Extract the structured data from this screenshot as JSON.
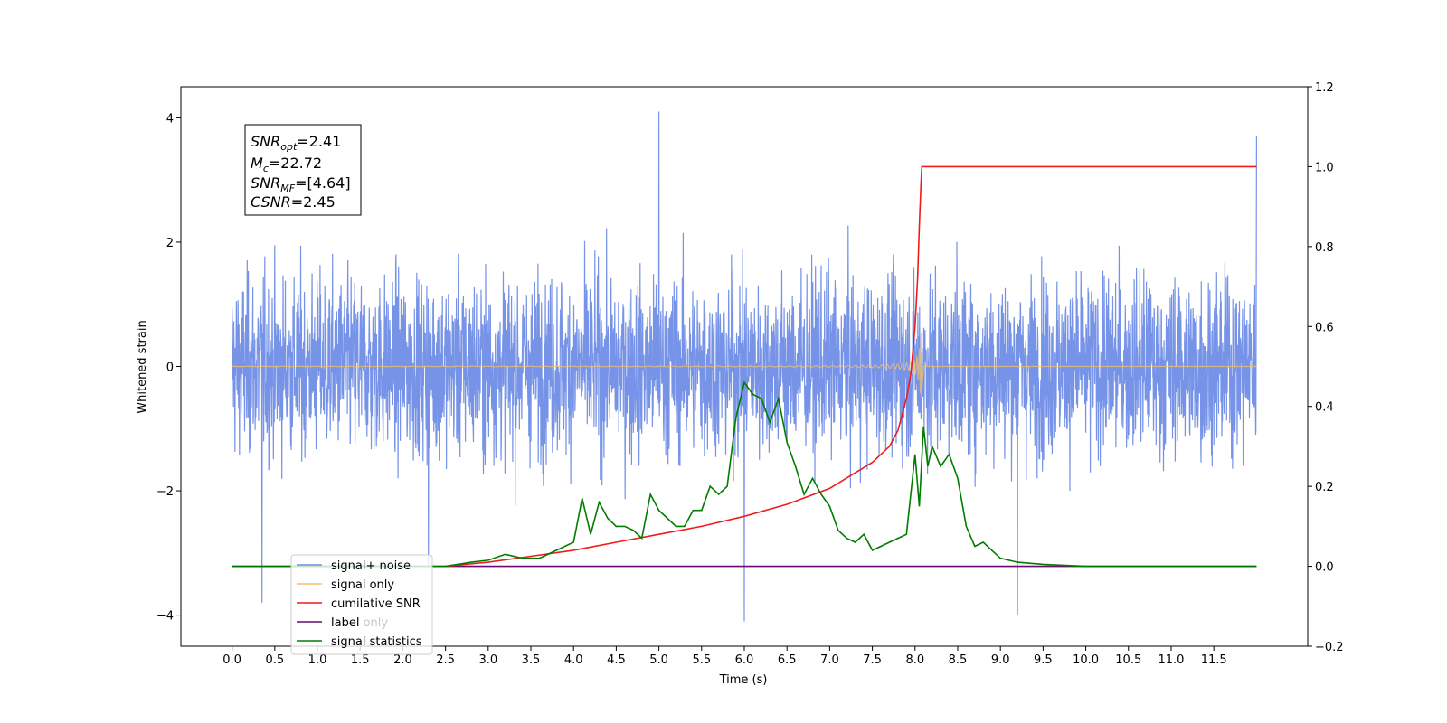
{
  "chart_data": {
    "type": "line",
    "xlabel": "Time (s)",
    "ylabel": "Whitened strain",
    "xlim": [
      -0.6,
      12.6
    ],
    "ylim": [
      -4.5,
      4.5
    ],
    "y2lim": [
      -0.2,
      1.2
    ],
    "x_ticks": [
      "0.0",
      "0.5",
      "1.0",
      "1.5",
      "2.0",
      "2.5",
      "3.0",
      "3.5",
      "4.0",
      "4.5",
      "5.0",
      "5.5",
      "6.0",
      "6.5",
      "7.0",
      "7.5",
      "8.0",
      "8.5",
      "9.0",
      "9.5",
      "10.0",
      "10.5",
      "11.0",
      "11.5"
    ],
    "y_ticks": [
      "−4",
      "−2",
      "0",
      "2",
      "4"
    ],
    "y2_ticks": [
      "−0.2",
      "0.0",
      "0.2",
      "0.4",
      "0.6",
      "0.8",
      "1.0",
      "1.2"
    ],
    "annotation": {
      "snr_opt": {
        "main": "SNR",
        "sub": "opt",
        "value": "=2.41"
      },
      "mc": {
        "main": "M",
        "sub": "c",
        "value": "=22.72"
      },
      "snr_mf": {
        "main": "SNR",
        "sub": "MF",
        "value": "=[4.64]"
      },
      "csnr": {
        "main": "CSNR",
        "value": "=2.45"
      }
    },
    "legend_position": "lower-left",
    "legend": [
      {
        "label": "signal+ noise",
        "color": "#6f8de6"
      },
      {
        "label": "signal only",
        "color": "#f5c067"
      },
      {
        "label": "cumilative SNR",
        "color": "#ee1c1c"
      },
      {
        "label": "label",
        "color": "#6a0a6f"
      },
      {
        "label": "label only",
        "color": "#ffffff"
      },
      {
        "label": "signal statistics",
        "color": "#007d00"
      }
    ],
    "series": [
      {
        "name": "signal+ noise",
        "axis": "left",
        "color": "#6f8de6",
        "kind": "noise",
        "x_range": [
          0.0,
          12.0
        ],
        "typical_range": [
          -2.0,
          2.0
        ],
        "peaks": [
          [
            0.35,
            -3.8
          ],
          [
            2.3,
            -3.2
          ],
          [
            5.0,
            4.1
          ],
          [
            6.0,
            -4.1
          ],
          [
            9.2,
            -4.0
          ],
          [
            12.0,
            3.7
          ]
        ]
      },
      {
        "name": "signal only",
        "axis": "left",
        "color": "#f5c067",
        "kind": "chirp",
        "x_range": [
          0.0,
          8.08
        ],
        "peak_amplitude": [
          0.55,
          -0.5
        ]
      },
      {
        "name": "cumilative SNR",
        "axis": "right",
        "color": "#ee1c1c",
        "x": [
          2.5,
          3.0,
          3.5,
          4.0,
          4.5,
          5.0,
          5.5,
          6.0,
          6.5,
          7.0,
          7.5,
          7.7,
          7.8,
          7.9,
          7.95,
          8.0,
          8.03,
          8.05,
          8.07,
          8.08,
          12.0
        ],
        "values": [
          0.0,
          0.01,
          0.025,
          0.04,
          0.06,
          0.08,
          0.1,
          0.125,
          0.155,
          0.195,
          0.26,
          0.3,
          0.34,
          0.42,
          0.48,
          0.6,
          0.72,
          0.85,
          0.96,
          1.0,
          1.0
        ]
      },
      {
        "name": "label",
        "axis": "right",
        "color": "#6a0a6f",
        "x": [
          0.0,
          12.0
        ],
        "values": [
          0.0,
          0.0
        ]
      },
      {
        "name": "signal statistics",
        "axis": "right",
        "color": "#007d00",
        "x": [
          0.0,
          2.5,
          2.8,
          3.0,
          3.2,
          3.4,
          3.6,
          3.8,
          4.0,
          4.1,
          4.2,
          4.3,
          4.4,
          4.5,
          4.6,
          4.7,
          4.8,
          4.9,
          5.0,
          5.1,
          5.2,
          5.3,
          5.4,
          5.5,
          5.6,
          5.7,
          5.8,
          5.9,
          6.0,
          6.1,
          6.2,
          6.3,
          6.4,
          6.5,
          6.6,
          6.7,
          6.8,
          6.9,
          7.0,
          7.1,
          7.2,
          7.3,
          7.4,
          7.5,
          7.6,
          7.7,
          7.8,
          7.9,
          8.0,
          8.05,
          8.1,
          8.15,
          8.2,
          8.3,
          8.4,
          8.5,
          8.6,
          8.7,
          8.8,
          8.9,
          9.0,
          9.2,
          9.5,
          10.0,
          12.0
        ],
        "values": [
          0.0,
          0.0,
          0.01,
          0.015,
          0.03,
          0.02,
          0.02,
          0.04,
          0.06,
          0.17,
          0.08,
          0.16,
          0.12,
          0.1,
          0.1,
          0.09,
          0.07,
          0.18,
          0.14,
          0.12,
          0.1,
          0.1,
          0.14,
          0.14,
          0.2,
          0.18,
          0.2,
          0.37,
          0.46,
          0.43,
          0.42,
          0.36,
          0.42,
          0.31,
          0.25,
          0.18,
          0.22,
          0.18,
          0.15,
          0.09,
          0.07,
          0.06,
          0.08,
          0.04,
          0.05,
          0.06,
          0.07,
          0.08,
          0.28,
          0.15,
          0.35,
          0.25,
          0.3,
          0.25,
          0.28,
          0.22,
          0.1,
          0.05,
          0.06,
          0.04,
          0.02,
          0.01,
          0.005,
          0.0,
          0.0
        ]
      }
    ]
  }
}
